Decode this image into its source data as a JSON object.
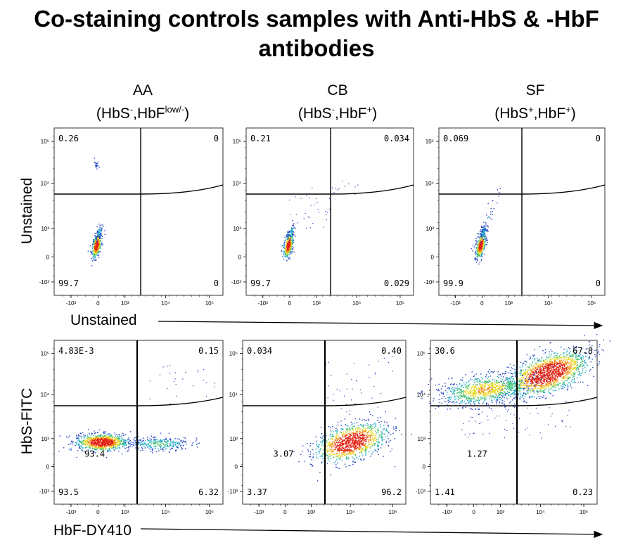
{
  "title": {
    "line1": "Co-staining controls samples with Anti-HbS & -HbF",
    "line2": "antibodies"
  },
  "columns": [
    {
      "name": "AA",
      "sub_pre": "(HbS",
      "sub_sup1": "-",
      "sub_mid": ",HbF",
      "sub_sup2": "low/-",
      "sub_post": ")"
    },
    {
      "name": "CB",
      "sub_pre": "(HbS",
      "sub_sup1": "-",
      "sub_mid": ",HbF",
      "sub_sup2": "+",
      "sub_post": ")"
    },
    {
      "name": "SF",
      "sub_pre": "(HbS",
      "sub_sup1": "+",
      "sub_mid": ",HbF",
      "sub_sup2": "+",
      "sub_post": ")"
    }
  ],
  "rows": {
    "top_y_label": "Unstained",
    "top_x_label": "Unstained",
    "bottom_y_label": "HbS-FITC",
    "bottom_x_label": "HbF-DY410"
  },
  "axis_ticks": {
    "x": [
      "-10³",
      "0",
      "10³",
      "10⁴",
      "10⁵"
    ],
    "y": [
      "10⁵",
      "10⁴",
      "10³",
      "0",
      "-10³"
    ]
  },
  "colors": {
    "density_low": "#1f3fbf",
    "density_mid": "#1fb8a8",
    "density_high": "#f0d020",
    "density_peak": "#e82010",
    "gate_line": "#000000"
  },
  "chart_data": [
    {
      "type": "scatter",
      "subtype": "flow-cytometry-density",
      "sample": "AA",
      "row": "Unstained",
      "xlabel": "Unstained",
      "ylabel": "Unstained",
      "scale": "biexponential",
      "quadrants": {
        "upper_left": "0.26",
        "upper_right": "0",
        "lower_left": "99.7",
        "lower_right": "0"
      }
    },
    {
      "type": "scatter",
      "subtype": "flow-cytometry-density",
      "sample": "CB",
      "row": "Unstained",
      "xlabel": "Unstained",
      "ylabel": "Unstained",
      "scale": "biexponential",
      "quadrants": {
        "upper_left": "0.21",
        "upper_right": "0.034",
        "lower_left": "99.7",
        "lower_right": "0.029"
      }
    },
    {
      "type": "scatter",
      "subtype": "flow-cytometry-density",
      "sample": "SF",
      "row": "Unstained",
      "xlabel": "Unstained",
      "ylabel": "Unstained",
      "scale": "biexponential",
      "quadrants": {
        "upper_left": "0.069",
        "upper_right": "0",
        "lower_left": "99.9",
        "lower_right": "0"
      }
    },
    {
      "type": "scatter",
      "subtype": "flow-cytometry-density",
      "sample": "AA",
      "row": "Stained",
      "xlabel": "HbF-DY410",
      "ylabel": "HbS-FITC",
      "scale": "biexponential",
      "quadrants": {
        "upper_left": "4.83E-3",
        "upper_right": "0.15",
        "lower_left": "93.5",
        "lower_right": "6.32"
      },
      "population_label": "93.4"
    },
    {
      "type": "scatter",
      "subtype": "flow-cytometry-density",
      "sample": "CB",
      "row": "Stained",
      "xlabel": "HbF-DY410",
      "ylabel": "HbS-FITC",
      "scale": "biexponential",
      "quadrants": {
        "upper_left": "0.034",
        "upper_right": "0.40",
        "lower_left": "3.37",
        "lower_right": "96.2"
      },
      "population_label": "3.07"
    },
    {
      "type": "scatter",
      "subtype": "flow-cytometry-density",
      "sample": "SF",
      "row": "Stained",
      "xlabel": "HbF-DY410",
      "ylabel": "HbS-FITC",
      "scale": "biexponential",
      "quadrants": {
        "upper_left": "30.6",
        "upper_right": "67.8",
        "lower_left": "1.41",
        "lower_right": "0.23"
      },
      "population_label": "1.27"
    }
  ]
}
